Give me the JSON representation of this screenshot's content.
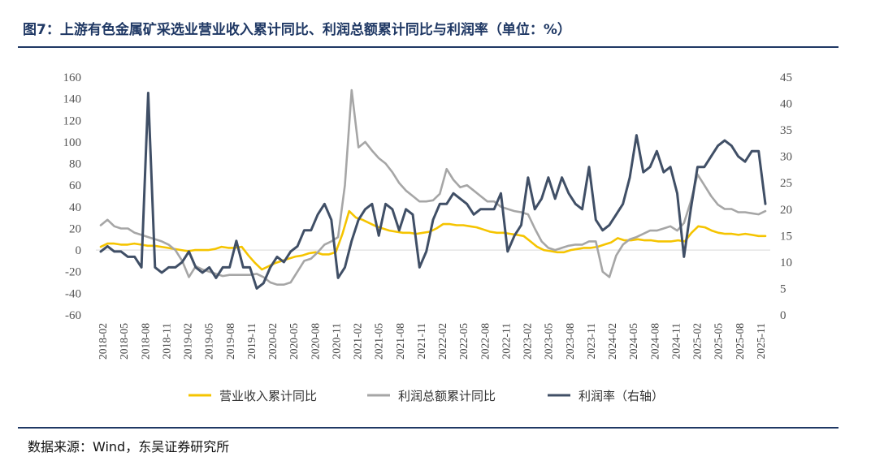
{
  "title": "图7：上游有色金属矿采选业营业收入累计同比、利润总额累计同比与利润率（单位：%）",
  "source": "数据来源：Wind，东吴证券研究所",
  "chart_data": {
    "type": "line",
    "x_tick_labels": [
      "2018-02",
      "2018-05",
      "2018-08",
      "2018-11",
      "2019-02",
      "2019-05",
      "2019-08",
      "2019-11",
      "2020-02",
      "2020-05",
      "2020-08",
      "2020-11",
      "2021-02",
      "2021-05",
      "2021-08",
      "2021-11",
      "2022-02",
      "2022-05",
      "2022-08",
      "2022-11",
      "2023-02",
      "2023-05",
      "2023-08",
      "2023-11",
      "2024-02",
      "2024-05",
      "2024-08",
      "2024-11",
      "2025-02",
      "2025-05",
      "2025-08",
      "2025-11"
    ],
    "left_axis": {
      "ticks": [
        "160",
        "140",
        "120",
        "100",
        "80",
        "60",
        "40",
        "20",
        "0",
        "-20",
        "-40",
        "-60"
      ],
      "ylim": [
        -60,
        160
      ]
    },
    "right_axis": {
      "ticks": [
        "45",
        "40",
        "35",
        "30",
        "25",
        "20",
        "15",
        "10",
        "5",
        "0"
      ],
      "ylim": [
        0,
        45
      ]
    },
    "series": [
      {
        "name": "营业收入累计同比",
        "color": "#f5c400",
        "axis": "left",
        "values": [
          3,
          6,
          6,
          5,
          5,
          6,
          5,
          4,
          4,
          3,
          2,
          1,
          0,
          -1,
          0,
          0,
          0,
          1,
          3,
          2,
          2,
          3,
          -5,
          -12,
          -18,
          -15,
          -12,
          -10,
          -8,
          -6,
          -5,
          -3,
          -2,
          -4,
          -4,
          -2,
          15,
          36,
          30,
          28,
          25,
          22,
          20,
          18,
          17,
          16,
          16,
          15,
          16,
          17,
          20,
          24,
          24,
          23,
          23,
          22,
          21,
          19,
          17,
          16,
          16,
          15,
          14,
          13,
          8,
          3,
          0,
          -1,
          -2,
          -2,
          0,
          1,
          2,
          2,
          3,
          5,
          7,
          11,
          9,
          9,
          10,
          9,
          9,
          8,
          8,
          8,
          9,
          8,
          16,
          22,
          21,
          18,
          16,
          15,
          15,
          14,
          15,
          14,
          13,
          13
        ]
      },
      {
        "name": "利润总额累计同比",
        "color": "#a6a6a6",
        "axis": "left",
        "values": [
          23,
          28,
          22,
          20,
          20,
          16,
          14,
          12,
          10,
          8,
          5,
          0,
          -10,
          -25,
          -15,
          -18,
          -20,
          -22,
          -24,
          -23,
          -23,
          -23,
          -23,
          -22,
          -25,
          -30,
          -32,
          -32,
          -30,
          -20,
          -10,
          -8,
          -2,
          5,
          8,
          12,
          60,
          148,
          95,
          100,
          92,
          85,
          80,
          72,
          62,
          55,
          50,
          45,
          45,
          46,
          52,
          75,
          65,
          58,
          60,
          55,
          50,
          45,
          45,
          40,
          38,
          36,
          35,
          33,
          20,
          8,
          2,
          0,
          2,
          4,
          5,
          5,
          8,
          8,
          -20,
          -25,
          -5,
          5,
          10,
          12,
          15,
          18,
          18,
          20,
          22,
          18,
          25,
          45,
          70,
          60,
          50,
          42,
          38,
          38,
          35,
          35,
          34,
          33,
          36
        ]
      },
      {
        "name": "利润率（右轴）",
        "color": "#404f66",
        "axis": "right",
        "values": [
          12,
          13,
          12,
          12,
          11,
          11,
          9,
          42,
          9,
          8,
          9,
          9,
          10,
          12,
          9,
          8,
          9,
          7,
          9,
          9,
          14,
          9,
          9,
          5,
          6,
          9,
          11,
          10,
          12,
          13,
          16,
          16,
          19,
          21,
          18,
          7,
          9,
          14,
          18,
          20,
          21,
          15,
          21,
          20,
          16,
          20,
          19,
          9,
          12,
          18,
          21,
          21,
          23,
          22,
          21,
          19,
          20,
          20,
          20,
          23,
          12,
          15,
          17,
          26,
          20,
          22,
          26,
          22,
          26,
          23,
          21,
          20,
          28,
          18,
          16,
          17,
          19,
          21,
          26,
          34,
          27,
          28,
          31,
          27,
          28,
          23,
          11,
          20,
          28,
          28,
          30,
          32,
          33,
          32,
          30,
          29,
          31,
          31,
          21
        ]
      }
    ],
    "legend": [
      "营业收入累计同比",
      "利润总额累计同比",
      "利润率（右轴）"
    ],
    "legend_position": "bottom-center"
  }
}
